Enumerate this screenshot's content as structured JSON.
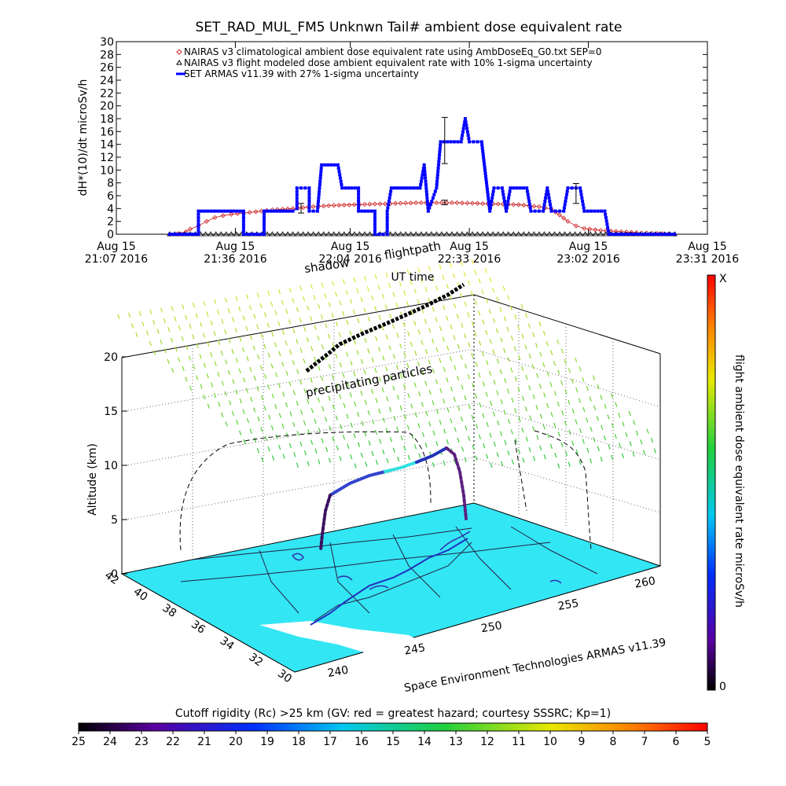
{
  "chart_data": [
    {
      "type": "line",
      "title": "SET_RAD_MUL_FM5 Unknwn Tail#  ambient dose equivalent rate",
      "ylabel": "dH*(10)/dt microSv/h",
      "xlabel": "",
      "ylim": [
        0,
        30
      ],
      "yticks": [
        0,
        2,
        4,
        6,
        8,
        10,
        12,
        14,
        16,
        18,
        20,
        22,
        24,
        26,
        28,
        30
      ],
      "xlim": [
        "2016-08-15T21:07",
        "2016-08-15T23:31"
      ],
      "xticks": [
        {
          "t": "2016-08-15T21:07",
          "line1": "Aug 15",
          "line2": "21:07 2016"
        },
        {
          "t": "2016-08-15T21:36",
          "line1": "Aug 15",
          "line2": "21:36 2016"
        },
        {
          "t": "2016-08-15T22:04",
          "line1": "Aug 15",
          "line2": "22:04 2016"
        },
        {
          "t": "2016-08-15T22:33",
          "line1": "Aug 15",
          "line2": "22:33 2016"
        },
        {
          "t": "2016-08-15T23:02",
          "line1": "Aug 15",
          "line2": "23:02 2016"
        },
        {
          "t": "2016-08-15T23:31",
          "line1": "Aug 15",
          "line2": "23:31 2016"
        }
      ],
      "legend_position": "top",
      "series": [
        {
          "name": "NAIRAS v3 climatological ambient dose equivalent rate using AmbDoseEq_G0.txt SEP=0",
          "marker": "diamond",
          "color": "#cc2222",
          "points": [
            [
              "2016-08-15T21:20",
              0
            ],
            [
              "2016-08-15T21:22",
              0.1
            ],
            [
              "2016-08-15T21:24",
              0.4
            ],
            [
              "2016-08-15T21:25",
              0.8
            ],
            [
              "2016-08-15T21:27",
              1.3
            ],
            [
              "2016-08-15T21:29",
              2.0
            ],
            [
              "2016-08-15T21:31",
              2.6
            ],
            [
              "2016-08-15T21:33",
              2.9
            ],
            [
              "2016-08-15T21:35",
              3.1
            ],
            [
              "2016-08-15T21:38",
              3.3
            ],
            [
              "2016-08-15T21:41",
              3.5
            ],
            [
              "2016-08-15T21:45",
              3.8
            ],
            [
              "2016-08-15T21:50",
              4.0
            ],
            [
              "2016-08-15T21:55",
              4.3
            ],
            [
              "2016-08-15T22:00",
              4.5
            ],
            [
              "2016-08-15T22:05",
              4.6
            ],
            [
              "2016-08-15T22:10",
              4.7
            ],
            [
              "2016-08-15T22:15",
              4.8
            ],
            [
              "2016-08-15T22:20",
              4.9
            ],
            [
              "2016-08-15T22:25",
              4.9
            ],
            [
              "2016-08-15T22:30",
              4.9
            ],
            [
              "2016-08-15T22:35",
              4.8
            ],
            [
              "2016-08-15T22:40",
              4.7
            ],
            [
              "2016-08-15T22:45",
              4.6
            ],
            [
              "2016-08-15T22:50",
              4.3
            ],
            [
              "2016-08-15T22:53",
              3.9
            ],
            [
              "2016-08-15T22:55",
              3.0
            ],
            [
              "2016-08-15T22:57",
              2.0
            ],
            [
              "2016-08-15T22:59",
              1.3
            ],
            [
              "2016-08-15T23:01",
              0.9
            ],
            [
              "2016-08-15T23:05",
              0.6
            ],
            [
              "2016-08-15T23:10",
              0.4
            ],
            [
              "2016-08-15T23:15",
              0.2
            ],
            [
              "2016-08-15T23:20",
              0.1
            ],
            [
              "2016-08-15T23:23",
              0
            ]
          ]
        },
        {
          "name": "NAIRAS v3 flight modeled dose ambient equivalent rate with 10% 1-sigma uncertainty",
          "marker": "triangle",
          "color": "#000000",
          "points": [
            [
              "2016-08-15T21:20",
              0
            ],
            [
              "2016-08-15T21:30",
              0
            ],
            [
              "2016-08-15T21:40",
              0
            ],
            [
              "2016-08-15T21:50",
              0
            ],
            [
              "2016-08-15T22:00",
              0
            ],
            [
              "2016-08-15T22:10",
              0
            ],
            [
              "2016-08-15T22:20",
              0
            ],
            [
              "2016-08-15T22:30",
              0
            ],
            [
              "2016-08-15T22:40",
              0
            ],
            [
              "2016-08-15T22:50",
              0
            ],
            [
              "2016-08-15T23:00",
              0
            ],
            [
              "2016-08-15T23:10",
              0
            ],
            [
              "2016-08-15T23:23",
              0
            ]
          ]
        },
        {
          "name": "SET ARMAS v11.39 with 27% 1-sigma uncertainty",
          "marker": "square",
          "color": "#0000ff",
          "points": [
            [
              "2016-08-15T21:20",
              0
            ],
            [
              "2016-08-15T21:27",
              0
            ],
            [
              "2016-08-15T21:27",
              3.6
            ],
            [
              "2016-08-15T21:38",
              3.6
            ],
            [
              "2016-08-15T21:38",
              0
            ],
            [
              "2016-08-15T21:43",
              0
            ],
            [
              "2016-08-15T21:43",
              3.6
            ],
            [
              "2016-08-15T21:50",
              3.6
            ],
            [
              "2016-08-15T21:51",
              4.0
            ],
            [
              "2016-08-15T21:51",
              7.2
            ],
            [
              "2016-08-15T21:54",
              7.2
            ],
            [
              "2016-08-15T21:54",
              3.6
            ],
            [
              "2016-08-15T21:56",
              3.6
            ],
            [
              "2016-08-15T21:57",
              10.8
            ],
            [
              "2016-08-15T22:01",
              10.8
            ],
            [
              "2016-08-15T22:02",
              7.2
            ],
            [
              "2016-08-15T22:06",
              7.2
            ],
            [
              "2016-08-15T22:06",
              3.6
            ],
            [
              "2016-08-15T22:10",
              3.6
            ],
            [
              "2016-08-15T22:10",
              0
            ],
            [
              "2016-08-15T22:13",
              0
            ],
            [
              "2016-08-15T22:13",
              3.6
            ],
            [
              "2016-08-15T22:14",
              7.2
            ],
            [
              "2016-08-15T22:21",
              7.2
            ],
            [
              "2016-08-15T22:22",
              10.8
            ],
            [
              "2016-08-15T22:23",
              3.6
            ],
            [
              "2016-08-15T22:25",
              7.2
            ],
            [
              "2016-08-15T22:26",
              14.4
            ],
            [
              "2016-08-15T22:31",
              14.4
            ],
            [
              "2016-08-15T22:32",
              18.0
            ],
            [
              "2016-08-15T22:33",
              14.4
            ],
            [
              "2016-08-15T22:36",
              14.4
            ],
            [
              "2016-08-15T22:38",
              3.6
            ],
            [
              "2016-08-15T22:39",
              7.2
            ],
            [
              "2016-08-15T22:41",
              7.2
            ],
            [
              "2016-08-15T22:42",
              3.6
            ],
            [
              "2016-08-15T22:43",
              7.2
            ],
            [
              "2016-08-15T22:47",
              7.2
            ],
            [
              "2016-08-15T22:48",
              3.6
            ],
            [
              "2016-08-15T22:51",
              3.6
            ],
            [
              "2016-08-15T22:52",
              7.2
            ],
            [
              "2016-08-15T22:53",
              3.6
            ],
            [
              "2016-08-15T22:56",
              3.6
            ],
            [
              "2016-08-15T22:57",
              7.2
            ],
            [
              "2016-08-15T23:00",
              7.2
            ],
            [
              "2016-08-15T23:01",
              3.6
            ],
            [
              "2016-08-15T23:06",
              3.6
            ],
            [
              "2016-08-15T23:07",
              0
            ],
            [
              "2016-08-15T23:23",
              0
            ]
          ]
        }
      ],
      "error_bars": [
        {
          "t": "2016-08-15T21:52",
          "low": 3.3,
          "high": 4.8
        },
        {
          "t": "2016-08-15T22:27",
          "low": 11.0,
          "high": 18.2
        },
        {
          "t": "2016-08-15T22:27",
          "low": 4.6,
          "high": 5.3
        },
        {
          "t": "2016-08-15T22:59",
          "low": 4.8,
          "high": 7.9
        }
      ]
    },
    {
      "type": "scatter",
      "ylabel": "Altitude (km)",
      "zticks": [
        "0",
        "5",
        "10",
        "15",
        "20"
      ],
      "lat_ticks": [
        "42",
        "40",
        "38",
        "36",
        "34",
        "32",
        "30"
      ],
      "lon_ticks": [
        "240",
        "245",
        "250",
        "255",
        "260"
      ],
      "annotations": [
        "precipitating particles",
        "shadow",
        "flightpath",
        "UT time"
      ],
      "credit": "Space Environment Technologies ARMAS v11.39",
      "colorbar_right": {
        "label": "flight ambient dose equivalent rate microSv/h",
        "top": "X",
        "bottom": "0"
      },
      "colorbar_bottom": {
        "label": "Cutoff rigidity (Rc) >25 km (GV: red = greatest hazard; courtesy SSSRC; Kp=1)",
        "ticks": [
          "25",
          "24",
          "23",
          "22",
          "21",
          "20",
          "19",
          "18",
          "17",
          "16",
          "15",
          "14",
          "13",
          "12",
          "11",
          "10",
          "9",
          "8",
          "7",
          "6",
          "5"
        ]
      }
    }
  ]
}
